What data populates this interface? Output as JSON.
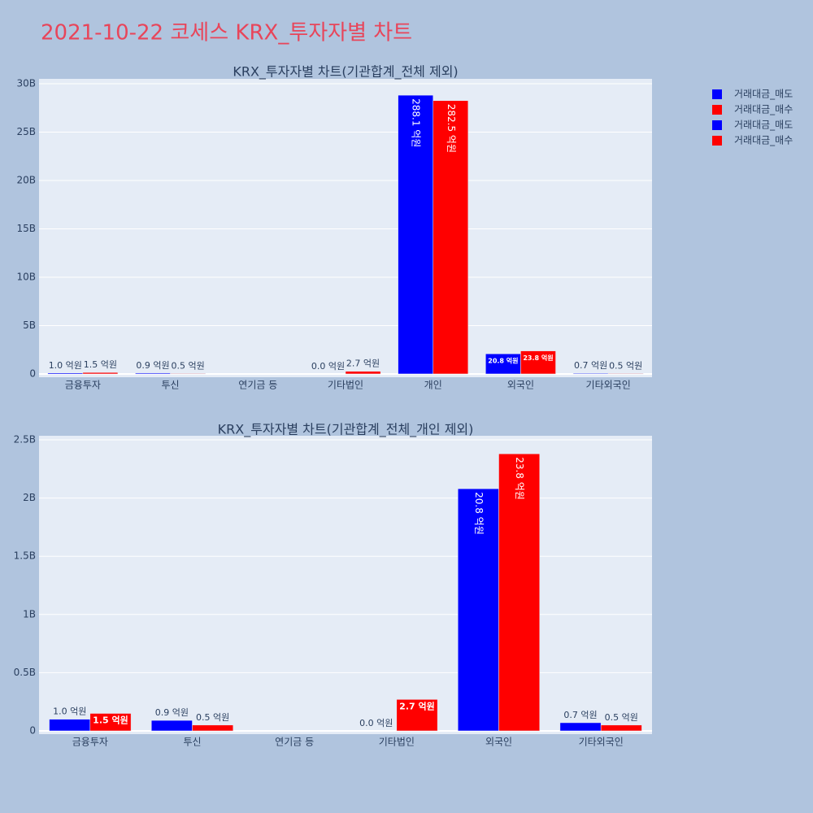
{
  "title": "2021-10-22 코세스 KRX_투자자별 차트",
  "chart_data": [
    {
      "type": "bar",
      "title": "KRX_투자자별 차트(기관합계_전체 제외)",
      "categories": [
        "금융투자",
        "투신",
        "연기금 등",
        "기타법인",
        "개인",
        "외국인",
        "기타외국인"
      ],
      "series": [
        {
          "name": "거래대금_매도",
          "color": "#0000ff",
          "values": [
            100000000,
            90000000,
            0,
            0,
            28810000000,
            2080000000,
            70000000
          ],
          "value_labels": [
            "1.0 억원",
            "0.9 억원",
            null,
            "0.0 억원",
            "288.1 억원",
            "20.8 억원",
            "0.7 억원"
          ]
        },
        {
          "name": "거래대금_매수",
          "color": "#ff0000",
          "values": [
            150000000,
            50000000,
            0,
            270000000,
            28250000000,
            2380000000,
            50000000
          ],
          "value_labels": [
            "1.5 억원",
            "0.5 억원",
            null,
            "2.7 억원",
            "282.5 억원",
            "23.8 억원",
            "0.5 억원"
          ]
        }
      ],
      "ylim": [
        -340000000,
        30500000000
      ],
      "yticks": [
        0,
        {
          "value": 5000000000,
          "label": "5B"
        },
        {
          "value": 10000000000,
          "label": "10B"
        },
        {
          "value": 15000000000,
          "label": "15B"
        },
        {
          "value": 20000000000,
          "label": "20B"
        },
        {
          "value": 25000000000,
          "label": "25B"
        },
        {
          "value": 30000000000,
          "label": "30B"
        }
      ],
      "grid": true
    },
    {
      "type": "bar",
      "title": "KRX_투자자별 차트(기관합계_전체_개인 제외)",
      "categories": [
        "금융투자",
        "투신",
        "연기금 등",
        "기타법인",
        "외국인",
        "기타외국인"
      ],
      "series": [
        {
          "name": "거래대금_매도",
          "color": "#0000ff",
          "values": [
            100000000,
            90000000,
            0,
            0,
            2080000000,
            70000000
          ],
          "value_labels": [
            "1.0 억원",
            "0.9 억원",
            null,
            "0.0 억원",
            "20.8 억원",
            "0.7 억원"
          ]
        },
        {
          "name": "거래대금_매수",
          "color": "#ff0000",
          "values": [
            150000000,
            50000000,
            0,
            270000000,
            2380000000,
            50000000
          ],
          "value_labels": [
            "1.5 억원",
            "0.5 억원",
            null,
            "2.7 억원",
            "23.8 억원",
            "0.5 억원"
          ]
        }
      ],
      "ylim": [
        -28000000,
        2535000000
      ],
      "yticks": [
        0,
        {
          "value": 500000000,
          "label": "0.5B"
        },
        {
          "value": 1000000000,
          "label": "1B"
        },
        {
          "value": 1500000000,
          "label": "1.5B"
        },
        {
          "value": 2000000000,
          "label": "2B"
        },
        {
          "value": 2500000000,
          "label": "2.5B"
        }
      ],
      "grid": true
    }
  ]
}
